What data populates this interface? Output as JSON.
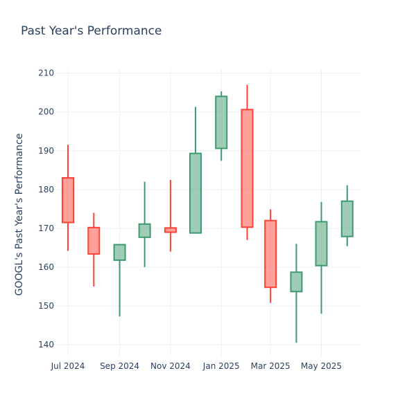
{
  "chart_data": {
    "type": "candlestick",
    "title": "Past Year's Performance",
    "xlabel": "",
    "ylabel": "GOOGL's Past Year's Performance",
    "ylim": [
      137,
      211
    ],
    "y_ticks": [
      140,
      150,
      160,
      170,
      180,
      190,
      200,
      210
    ],
    "x_ticks": [
      {
        "label": "Jul 2024",
        "date": "2024-07-01"
      },
      {
        "label": "Sep 2024",
        "date": "2024-09-01"
      },
      {
        "label": "Nov 2024",
        "date": "2024-11-01"
      },
      {
        "label": "Jan 2025",
        "date": "2025-01-01"
      },
      {
        "label": "Mar 2025",
        "date": "2025-03-01"
      },
      {
        "label": "May 2025",
        "date": "2025-05-01"
      }
    ],
    "x_range": [
      "2024-06-16",
      "2025-06-17"
    ],
    "grid": true,
    "colors": {
      "increasing": "#3D9970",
      "decreasing": "#FF4136",
      "text": "#2a3f5f",
      "grid": "#ebf0f8"
    },
    "candles": [
      {
        "date": "2024-07-01",
        "open": 183.0,
        "high": 191.5,
        "low": 164.2,
        "close": 171.5
      },
      {
        "date": "2024-08-01",
        "open": 170.2,
        "high": 174.0,
        "low": 155.0,
        "close": 163.4
      },
      {
        "date": "2024-09-01",
        "open": 161.8,
        "high": 165.9,
        "low": 147.3,
        "close": 165.8
      },
      {
        "date": "2024-10-01",
        "open": 167.7,
        "high": 182.0,
        "low": 160.0,
        "close": 171.1
      },
      {
        "date": "2024-11-01",
        "open": 170.1,
        "high": 182.5,
        "low": 164.0,
        "close": 169.0
      },
      {
        "date": "2024-12-01",
        "open": 168.8,
        "high": 201.3,
        "low": 168.8,
        "close": 189.3
      },
      {
        "date": "2025-01-01",
        "open": 190.6,
        "high": 205.3,
        "low": 187.4,
        "close": 204.0
      },
      {
        "date": "2025-02-01",
        "open": 200.6,
        "high": 207.0,
        "low": 167.0,
        "close": 170.3
      },
      {
        "date": "2025-03-01",
        "open": 172.0,
        "high": 174.9,
        "low": 150.8,
        "close": 154.8
      },
      {
        "date": "2025-04-01",
        "open": 153.7,
        "high": 166.0,
        "low": 140.5,
        "close": 158.7
      },
      {
        "date": "2025-05-01",
        "open": 160.4,
        "high": 176.8,
        "low": 148.0,
        "close": 171.7
      },
      {
        "date": "2025-06-01",
        "open": 167.9,
        "high": 181.1,
        "low": 165.4,
        "close": 177.0
      }
    ]
  }
}
